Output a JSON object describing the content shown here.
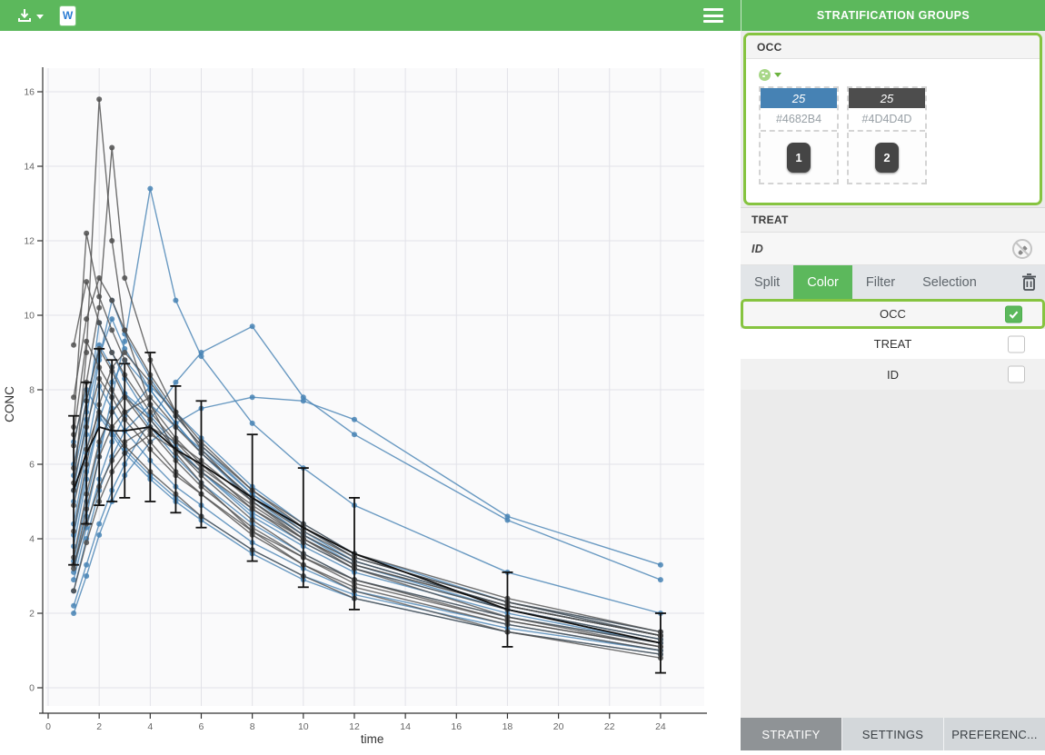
{
  "toolbar": {
    "title": "STRATIFICATION GROUPS",
    "icons": {
      "download": "download-icon",
      "download_caret": "caret-down-icon",
      "word_export": "word-export-icon",
      "word_letter": "W",
      "menu": "hamburger-menu-icon"
    }
  },
  "sidebar": {
    "occ_panel": {
      "title": "OCC",
      "palette_icon": "palette-icon",
      "groups": [
        {
          "count": "25",
          "hex": "#4682B4",
          "color": "#4682B4",
          "chip": "1"
        },
        {
          "count": "25",
          "hex": "#4D4D4D",
          "color": "#4D4D4D",
          "chip": "2"
        }
      ]
    },
    "treat_header": "TREAT",
    "id_header": "ID",
    "id_header_icon": "no-color-icon",
    "tabs": [
      {
        "label": "Split",
        "active": false
      },
      {
        "label": "Color",
        "active": true
      },
      {
        "label": "Filter",
        "active": false
      },
      {
        "label": "Selection",
        "active": false
      }
    ],
    "trash_icon": "trash-icon",
    "rows": [
      {
        "label": "OCC",
        "checked": true,
        "highlight": true,
        "bg": "hl"
      },
      {
        "label": "TREAT",
        "checked": false,
        "highlight": false,
        "bg": "bg-white"
      },
      {
        "label": "ID",
        "checked": false,
        "highlight": false,
        "bg": "bg-gray"
      }
    ],
    "footer": [
      {
        "label": "STRATIFY",
        "active": true
      },
      {
        "label": "SETTINGS",
        "active": false
      },
      {
        "label": "PREFERENC...",
        "active": false
      }
    ]
  },
  "chart_data": {
    "type": "line",
    "title": "",
    "xlabel": "time",
    "ylabel": "CONC",
    "xticks": [
      0,
      2,
      4,
      6,
      8,
      10,
      12,
      14,
      16,
      18,
      20,
      22,
      24
    ],
    "yticks": [
      0,
      2,
      4,
      6,
      8,
      10,
      12,
      14,
      16
    ],
    "xlim": [
      0,
      25.7
    ],
    "ylim": [
      -0.5,
      16.6
    ],
    "grid": true,
    "legend_position": "none",
    "description": "Spaghetti plot of individual CONC vs time profiles colored by OCC (1 = #4682B4 steel blue, 2 = #4D4D4D dark gray, 25 subjects each) with overall mean ± SD error bars in black",
    "times": [
      1,
      1.5,
      2,
      2.5,
      3,
      4,
      5,
      6,
      8,
      10,
      12,
      18,
      24
    ],
    "groups": [
      {
        "name": "OCC 1",
        "color": "#4682B4",
        "count": 25,
        "series": [
          [
            3.1,
            4.6,
            6.2,
            7.8,
            9.3,
            13.4,
            10.4,
            8.9,
            7.1,
            5.9,
            4.9,
            3.1,
            2.0
          ],
          [
            5.3,
            7.2,
            9.8,
            9.0,
            8.3,
            7.2,
            6.4,
            5.8,
            4.7,
            3.9,
            3.2,
            2.1,
            1.3
          ],
          [
            2.2,
            3.3,
            4.4,
            5.3,
            6.0,
            7.2,
            8.2,
            9.0,
            9.7,
            7.8,
            6.8,
            4.5,
            2.9
          ],
          [
            4.4,
            6.3,
            8.1,
            7.5,
            6.9,
            6.1,
            5.4,
            4.9,
            3.9,
            3.2,
            2.6,
            1.7,
            1.0
          ],
          [
            6.6,
            8.0,
            7.4,
            6.9,
            6.4,
            5.7,
            5.1,
            4.6,
            3.7,
            3.0,
            2.5,
            1.6,
            1.0
          ],
          [
            3.8,
            5.6,
            7.2,
            8.2,
            8.8,
            8.0,
            7.1,
            6.3,
            5.0,
            4.1,
            3.3,
            2.1,
            1.3
          ],
          [
            5.0,
            6.8,
            8.8,
            10.4,
            9.5,
            8.3,
            7.3,
            6.5,
            5.2,
            4.2,
            3.4,
            2.2,
            1.4
          ],
          [
            2.9,
            4.3,
            5.6,
            6.6,
            7.3,
            8.1,
            7.4,
            6.7,
            5.4,
            4.4,
            3.6,
            2.3,
            1.5
          ],
          [
            4.1,
            5.8,
            7.3,
            6.8,
            6.3,
            5.6,
            5.0,
            4.5,
            3.6,
            2.9,
            2.4,
            1.5,
            0.9
          ],
          [
            6.0,
            7.7,
            9.2,
            8.6,
            7.9,
            7.0,
            6.2,
            5.5,
            4.4,
            3.6,
            2.9,
            1.9,
            1.2
          ],
          [
            3.4,
            5.0,
            6.5,
            7.4,
            7.9,
            7.3,
            6.5,
            5.8,
            4.6,
            3.8,
            3.1,
            2.0,
            1.2
          ],
          [
            5.7,
            7.4,
            8.9,
            9.9,
            9.1,
            8.0,
            7.1,
            6.3,
            5.1,
            4.1,
            3.4,
            2.2,
            1.4
          ],
          [
            2.0,
            3.0,
            4.1,
            5.0,
            5.7,
            6.6,
            7.1,
            7.5,
            7.8,
            7.7,
            7.2,
            4.6,
            3.3
          ],
          [
            2.6,
            4.0,
            5.3,
            6.2,
            6.9,
            7.6,
            7.0,
            6.4,
            5.2,
            4.3,
            3.5,
            2.3,
            1.4
          ]
        ]
      },
      {
        "name": "OCC 2",
        "color": "#4D4D4D",
        "count": 25,
        "series": [
          [
            5.3,
            9.0,
            15.8,
            12.0,
            9.6,
            7.6,
            6.3,
            5.5,
            4.2,
            3.3,
            2.6,
            1.5,
            0.8
          ],
          [
            6.5,
            8.2,
            10.2,
            14.5,
            11.0,
            8.8,
            7.4,
            6.4,
            5.0,
            4.0,
            3.2,
            1.9,
            1.1
          ],
          [
            7.0,
            12.2,
            10.5,
            9.6,
            8.8,
            7.6,
            6.7,
            6.0,
            4.8,
            3.9,
            3.2,
            2.1,
            1.3
          ],
          [
            9.2,
            10.9,
            9.8,
            9.0,
            8.4,
            7.4,
            6.6,
            5.9,
            4.9,
            4.0,
            3.3,
            2.2,
            1.4
          ],
          [
            4.2,
            6.0,
            7.6,
            8.6,
            9.0,
            8.2,
            7.3,
            6.5,
            5.3,
            4.4,
            3.6,
            2.4,
            1.5
          ],
          [
            5.5,
            7.0,
            8.3,
            7.8,
            7.2,
            6.4,
            5.7,
            5.2,
            4.2,
            3.5,
            2.9,
            1.9,
            1.2
          ],
          [
            3.2,
            4.8,
            6.2,
            7.0,
            7.4,
            7.8,
            7.0,
            6.3,
            5.1,
            4.2,
            3.5,
            2.3,
            1.5
          ],
          [
            6.8,
            9.3,
            8.6,
            8.0,
            7.4,
            6.6,
            5.8,
            5.2,
            4.1,
            3.3,
            2.7,
            1.7,
            1.0
          ],
          [
            2.6,
            3.9,
            5.0,
            5.8,
            6.3,
            6.8,
            6.4,
            5.8,
            4.8,
            4.0,
            3.3,
            2.2,
            1.4
          ],
          [
            4.9,
            6.4,
            7.4,
            7.0,
            6.5,
            5.8,
            5.2,
            4.6,
            3.7,
            3.0,
            2.4,
            1.5,
            0.9
          ],
          [
            7.8,
            9.9,
            11.0,
            10.4,
            9.6,
            8.4,
            7.4,
            6.6,
            5.3,
            4.3,
            3.5,
            2.3,
            1.4
          ],
          [
            3.5,
            5.2,
            6.6,
            7.4,
            7.8,
            7.2,
            6.4,
            5.7,
            4.5,
            3.6,
            2.9,
            1.8,
            1.1
          ],
          [
            5.9,
            7.7,
            9.1,
            8.5,
            7.8,
            6.9,
            6.1,
            5.4,
            4.3,
            3.5,
            2.8,
            1.8,
            1.1
          ],
          [
            3.3,
            4.4,
            5.4,
            6.1,
            6.6,
            7.0,
            6.6,
            6.1,
            5.0,
            4.1,
            3.4,
            2.2,
            1.4
          ]
        ]
      }
    ],
    "mean_sd": {
      "color": "#111111",
      "mean": [
        5.3,
        6.3,
        7.0,
        6.9,
        6.9,
        7.0,
        6.4,
        6.0,
        5.1,
        4.3,
        3.6,
        2.1,
        1.2
      ],
      "sd": [
        2.0,
        1.9,
        2.1,
        1.9,
        1.8,
        2.0,
        1.7,
        1.7,
        1.7,
        1.6,
        1.5,
        1.0,
        0.8
      ]
    },
    "colors": {
      "panel_bg": "#fafafb",
      "gridline": "#e2e2e8",
      "axis": "#333333",
      "tick_label": "#666666"
    }
  }
}
